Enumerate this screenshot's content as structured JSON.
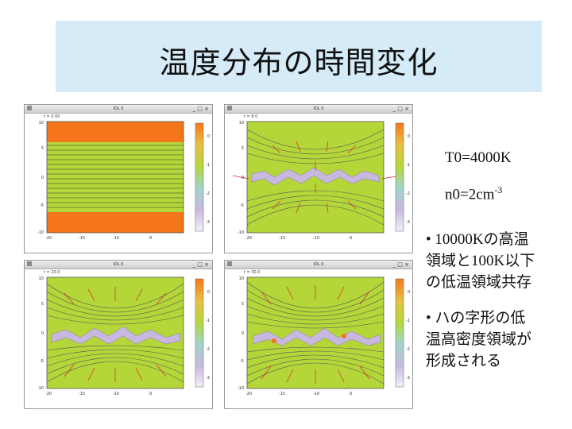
{
  "title": "温度分布の時間変化",
  "window_title": "IDL 0",
  "window_controls": "_ □ ×",
  "panels": [
    {
      "time_label": "t = 0.00",
      "y_ticks": [
        "10",
        "5",
        "0",
        "-5",
        "-10"
      ],
      "x_ticks": [
        "-20",
        "-15",
        "-10",
        "-5"
      ],
      "cb_ticks": [
        "0",
        "-1",
        "-2",
        "-3"
      ]
    },
    {
      "time_label": "t = 8.0",
      "y_ticks": [
        "10",
        "5",
        "0",
        "-5",
        "-10"
      ],
      "x_ticks": [
        "-20",
        "-15",
        "-10",
        "-5"
      ],
      "cb_ticks": [
        "0",
        "-1",
        "-2",
        "-3"
      ]
    },
    {
      "time_label": "t = 20.0",
      "y_ticks": [
        "10",
        "5",
        "0",
        "-5",
        "-10"
      ],
      "x_ticks": [
        "-20",
        "-15",
        "-10",
        "-5"
      ],
      "cb_ticks": [
        "0",
        "-1",
        "-2",
        "-3"
      ]
    },
    {
      "time_label": "t = 30.0",
      "y_ticks": [
        "10",
        "5",
        "0",
        "-5",
        "-10"
      ],
      "x_ticks": [
        "-20",
        "-15",
        "-10",
        "-5"
      ],
      "cb_ticks": [
        "0",
        "-1",
        "-2",
        "-3"
      ]
    }
  ],
  "params": {
    "t0": "T0=4000K",
    "n0_base": "n0=2cm",
    "n0_exp": "-3"
  },
  "bullets": [
    {
      "mark": "•",
      "text_line1": "10000Kの高温",
      "text_line2": "領域と100K以下",
      "text_line3": "の低温領域共存"
    },
    {
      "mark": "•",
      "text_line1": "ハの字形の低",
      "text_line2": "温高密度領域が",
      "text_line3": "形成される"
    }
  ],
  "colors": {
    "title_bg": "#d6ebf8",
    "field_green": "#b5d639",
    "hot_orange": "#f5761a",
    "arrow_red": "#d8242a",
    "cold_lavender": "#c8b8e0"
  }
}
